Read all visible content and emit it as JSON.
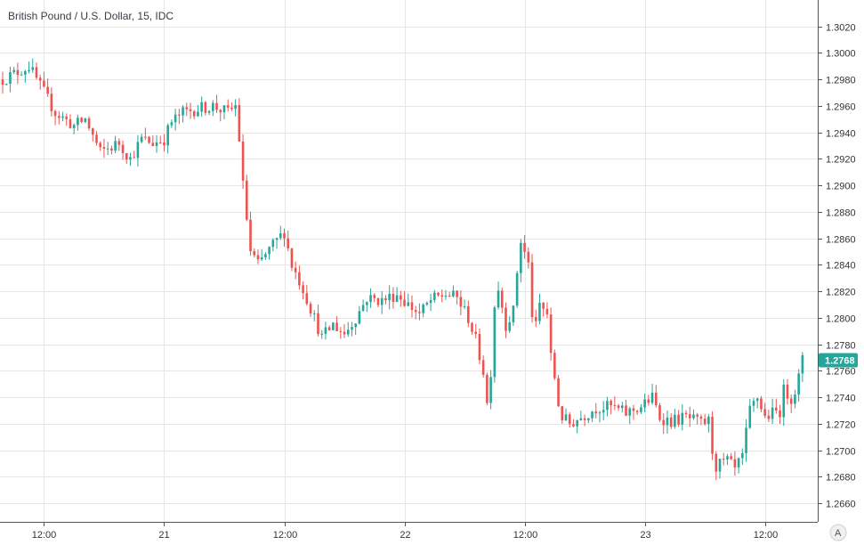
{
  "chart_data": {
    "type": "candlestick",
    "title": "British Pound / U.S. Dollar, 15, IDC",
    "ylim": [
      1.2646,
      1.304
    ],
    "y_ticks": [
      "1.3020",
      "1.3000",
      "1.2980",
      "1.2960",
      "1.2940",
      "1.2920",
      "1.2900",
      "1.2880",
      "1.2860",
      "1.2840",
      "1.2820",
      "1.2800",
      "1.2780",
      "1.2760",
      "1.2740",
      "1.2720",
      "1.2700",
      "1.2680",
      "1.2660"
    ],
    "x_ticks": [
      {
        "label": "12:00",
        "bar": 11
      },
      {
        "label": "21",
        "bar": 43
      },
      {
        "label": "12:00",
        "bar": 75
      },
      {
        "label": "22",
        "bar": 107
      },
      {
        "label": "12:00",
        "bar": 139
      },
      {
        "label": "23",
        "bar": 171
      },
      {
        "label": "12:00",
        "bar": 203
      }
    ],
    "grid": true,
    "last_price": "1.2768",
    "auto_scale_button": "A",
    "colors": {
      "up": "#26a69a",
      "down": "#ef5350",
      "grid": "#e6e6e6",
      "axis": "#555555"
    },
    "bar_count": 214,
    "anchors": [
      [
        0,
        1.298
      ],
      [
        7,
        1.299
      ],
      [
        10,
        1.2975
      ],
      [
        14,
        1.2955
      ],
      [
        19,
        1.2945
      ],
      [
        22,
        1.295
      ],
      [
        26,
        1.2925
      ],
      [
        31,
        1.2932
      ],
      [
        34,
        1.292
      ],
      [
        37,
        1.2935
      ],
      [
        40,
        1.2932
      ],
      [
        43,
        1.2935
      ],
      [
        45,
        1.2948
      ],
      [
        48,
        1.2955
      ],
      [
        52,
        1.2958
      ],
      [
        56,
        1.296
      ],
      [
        60,
        1.2955
      ],
      [
        62,
        1.296
      ],
      [
        63,
        1.2935
      ],
      [
        64,
        1.29
      ],
      [
        66,
        1.285
      ],
      [
        68,
        1.284
      ],
      [
        72,
        1.2855
      ],
      [
        75,
        1.2865
      ],
      [
        77,
        1.284
      ],
      [
        80,
        1.2822
      ],
      [
        83,
        1.28
      ],
      [
        85,
        1.2785
      ],
      [
        88,
        1.2795
      ],
      [
        91,
        1.2788
      ],
      [
        94,
        1.28
      ],
      [
        97,
        1.2815
      ],
      [
        101,
        1.2813
      ],
      [
        105,
        1.2818
      ],
      [
        108,
        1.281
      ],
      [
        111,
        1.2803
      ],
      [
        114,
        1.2813
      ],
      [
        118,
        1.2818
      ],
      [
        121,
        1.2815
      ],
      [
        124,
        1.28
      ],
      [
        126,
        1.2783
      ],
      [
        128,
        1.276
      ],
      [
        129,
        1.2735
      ],
      [
        130,
        1.276
      ],
      [
        131,
        1.281
      ],
      [
        132,
        1.2823
      ],
      [
        134,
        1.2795
      ],
      [
        136,
        1.2805
      ],
      [
        137,
        1.2835
      ],
      [
        138,
        1.2858
      ],
      [
        140,
        1.284
      ],
      [
        141,
        1.2803
      ],
      [
        142,
        1.2793
      ],
      [
        143,
        1.281
      ],
      [
        145,
        1.2803
      ],
      [
        146,
        1.277
      ],
      [
        147,
        1.2755
      ],
      [
        148,
        1.2735
      ],
      [
        149,
        1.2725
      ],
      [
        151,
        1.272
      ],
      [
        154,
        1.2725
      ],
      [
        158,
        1.2732
      ],
      [
        162,
        1.2733
      ],
      [
        166,
        1.2728
      ],
      [
        170,
        1.2733
      ],
      [
        173,
        1.274
      ],
      [
        175,
        1.2725
      ],
      [
        178,
        1.2722
      ],
      [
        182,
        1.2725
      ],
      [
        186,
        1.272
      ],
      [
        188,
        1.2722
      ],
      [
        189,
        1.27
      ],
      [
        190,
        1.2688
      ],
      [
        193,
        1.2692
      ],
      [
        195,
        1.2685
      ],
      [
        197,
        1.2695
      ],
      [
        199,
        1.273
      ],
      [
        201,
        1.274
      ],
      [
        203,
        1.2725
      ],
      [
        205,
        1.2728
      ],
      [
        207,
        1.273
      ],
      [
        208,
        1.2745
      ],
      [
        210,
        1.274
      ],
      [
        211,
        1.2745
      ],
      [
        212,
        1.2755
      ],
      [
        213,
        1.2768
      ]
    ]
  }
}
